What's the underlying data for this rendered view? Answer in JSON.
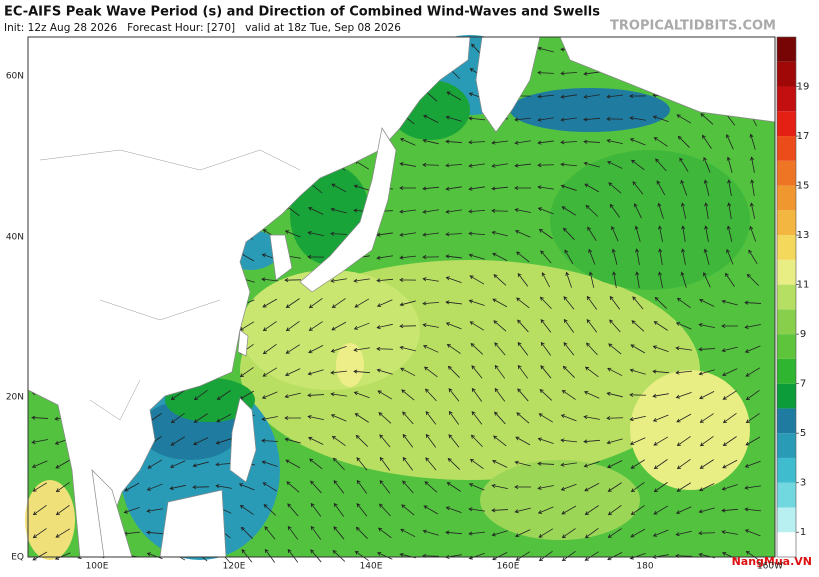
{
  "header": {
    "title": "EC-AIFS Peak Wave Period (s) and Direction of Combined Wind-Waves and Swells",
    "subtitle": "Init: 12z Aug 28 2026   Forecast Hour: [270]   valid at 18z Tue, Sep 08 2026",
    "site": "TROPICALTIDBITS.COM"
  },
  "map": {
    "lat_labels": [
      "60N",
      "40N",
      "20N",
      "EQ"
    ],
    "lon_labels": [
      "100E",
      "120E",
      "140E",
      "160E",
      "180",
      "160W"
    ]
  },
  "colorbar": {
    "lim": [
      0,
      21
    ],
    "ticks": [
      1,
      3,
      5,
      7,
      9,
      11,
      13,
      15,
      17,
      19
    ],
    "colors": [
      "#ffffff",
      "#b8f0f2",
      "#72d8e0",
      "#3fbccd",
      "#2a9bb7",
      "#1f7ca0",
      "#0c9c3a",
      "#2fb52f",
      "#5dc43c",
      "#88d04c",
      "#b5df62",
      "#e8ee84",
      "#f4d85c",
      "#f3b640",
      "#f19730",
      "#ee7524",
      "#eb4c1a",
      "#e42014",
      "#c40f10",
      "#a00808",
      "#780505"
    ]
  },
  "watermark": "NangMua.VN"
}
